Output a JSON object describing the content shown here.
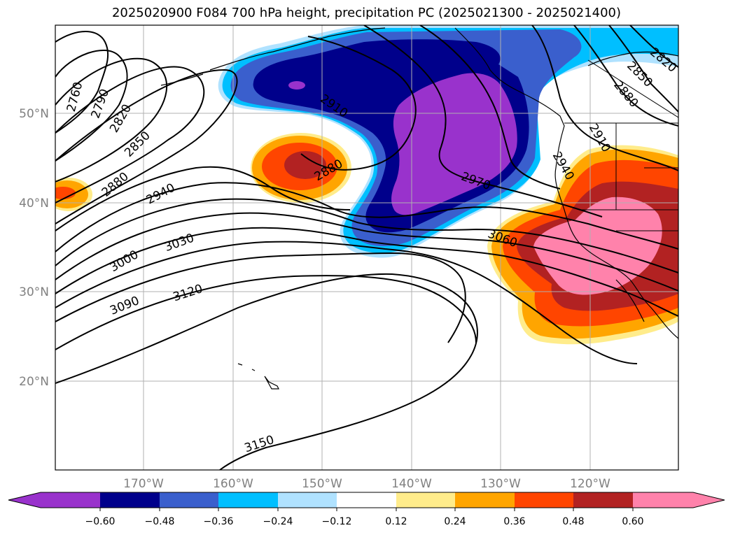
{
  "title": "2025020900 F084 700 hPa height, precipitation PC (2025021300 - 2025021400)",
  "lat_labels": [
    "50°N",
    "40°N",
    "30°N",
    "20°N"
  ],
  "lon_labels": [
    "170°W",
    "160°W",
    "150°W",
    "140°W",
    "130°W",
    "120°W"
  ],
  "contour_labels": [
    "2760",
    "2790",
    "2820",
    "2850",
    "2880",
    "2940",
    "3000",
    "3030",
    "3090",
    "3120",
    "3150",
    "2910",
    "2880",
    "2970",
    "3060",
    "2940",
    "2910",
    "2880",
    "2850",
    "2820"
  ],
  "colorbar": {
    "colors": [
      "#9932CC",
      "#00008B",
      "#3A5FCD",
      "#00BFFF",
      "#B0E2FF",
      "#FFFFFF",
      "#FFEC8B",
      "#FFA500",
      "#FF4500",
      "#B22222",
      "#FF82AB"
    ],
    "labels": [
      "−0.60",
      "−0.48",
      "−0.36",
      "−0.24",
      "−0.12",
      "0.12",
      "0.24",
      "0.36",
      "0.48",
      "0.60"
    ]
  }
}
